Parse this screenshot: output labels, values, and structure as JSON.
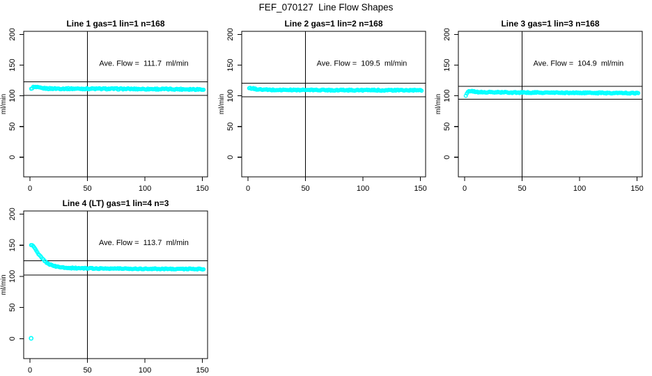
{
  "page": {
    "title": "FEF_070127  Line Flow Shapes"
  },
  "colors": {
    "marker": "#00FFFF",
    "axis": "#000000",
    "background": "#FFFFFF"
  },
  "chart_data": [
    {
      "type": "scatter",
      "title": "Line 1 gas=1 lin=1 n=168",
      "annotation": "Ave. Flow =  111.7  ml/min",
      "ave_flow_ml_min": 111.7,
      "n": 168,
      "gas": 1,
      "lin": 1,
      "ylabel": "ml/min",
      "xlabel": "",
      "x_ticks": [
        0,
        50,
        100,
        150
      ],
      "y_ticks": [
        0,
        50,
        100,
        150,
        200
      ],
      "xlim": [
        -5.5,
        154.5
      ],
      "ylim": [
        -32,
        205
      ],
      "grid": false,
      "vline_x": 50,
      "hlines": [
        122.9,
        100.5
      ],
      "n_points": 168,
      "noise": 1.0,
      "series_profile": [
        [
          1,
          110.8
        ],
        [
          2.5,
          114.2
        ],
        [
          6,
          113.8
        ],
        [
          10,
          112.4
        ],
        [
          16,
          111.8
        ],
        [
          60,
          111.4
        ],
        [
          151,
          110.6
        ]
      ],
      "extra_points": [],
      "annotation_pos": [
        99,
        149
      ]
    },
    {
      "type": "scatter",
      "title": "Line 2 gas=1 lin=2 n=168",
      "annotation": "Ave. Flow =  109.5  ml/min",
      "ave_flow_ml_min": 109.5,
      "n": 168,
      "gas": 1,
      "lin": 2,
      "ylabel": "ml/min",
      "xlabel": "",
      "x_ticks": [
        0,
        50,
        100,
        150
      ],
      "y_ticks": [
        0,
        50,
        100,
        150,
        200
      ],
      "xlim": [
        -5.5,
        154.5
      ],
      "ylim": [
        -32,
        205
      ],
      "grid": false,
      "vline_x": 50,
      "hlines": [
        120.5,
        98.6
      ],
      "n_points": 168,
      "noise": 0.9,
      "series_profile": [
        [
          1,
          112.2
        ],
        [
          4,
          112.0
        ],
        [
          9,
          110.2
        ],
        [
          20,
          109.6
        ],
        [
          80,
          109.3
        ],
        [
          151,
          108.9
        ]
      ],
      "extra_points": [],
      "annotation_pos": [
        99,
        149
      ]
    },
    {
      "type": "scatter",
      "title": "Line 3 gas=1 lin=3 n=168",
      "annotation": "Ave. Flow =  104.9  ml/min",
      "ave_flow_ml_min": 104.9,
      "n": 168,
      "gas": 1,
      "lin": 3,
      "ylabel": "ml/min",
      "xlabel": "",
      "x_ticks": [
        0,
        50,
        100,
        150
      ],
      "y_ticks": [
        0,
        50,
        100,
        150,
        200
      ],
      "xlim": [
        -5.5,
        154.5
      ],
      "ylim": [
        -32,
        205
      ],
      "grid": false,
      "vline_x": 50,
      "hlines": [
        115.4,
        94.4
      ],
      "n_points": 168,
      "noise": 0.9,
      "series_profile": [
        [
          1,
          100.2
        ],
        [
          2.5,
          106.8
        ],
        [
          6,
          107.4
        ],
        [
          12,
          105.9
        ],
        [
          60,
          105.2
        ],
        [
          151,
          104.4
        ]
      ],
      "extra_points": [],
      "annotation_pos": [
        99,
        149
      ]
    },
    {
      "type": "scatter",
      "title": "Line 4 (LT) gas=1 lin=4 n=3",
      "annotation": "Ave. Flow =  113.7  ml/min",
      "ave_flow_ml_min": 113.7,
      "n": 3,
      "gas": 1,
      "lin": 4,
      "ylabel": "ml/min",
      "xlabel": "",
      "x_ticks": [
        0,
        50,
        100,
        150
      ],
      "y_ticks": [
        0,
        50,
        100,
        150,
        200
      ],
      "xlim": [
        -5.5,
        154.5
      ],
      "ylim": [
        -32,
        205
      ],
      "grid": false,
      "vline_x": 50,
      "hlines": [
        125.1,
        102.3
      ],
      "n_points": 168,
      "noise": 0.8,
      "series_profile": [
        [
          1,
          151.0
        ],
        [
          3,
          148.0
        ],
        [
          5,
          143.0
        ],
        [
          7,
          137.0
        ],
        [
          9,
          132.0
        ],
        [
          12,
          126.0
        ],
        [
          15,
          121.5
        ],
        [
          18,
          118.5
        ],
        [
          22,
          116.0
        ],
        [
          27,
          114.5
        ],
        [
          35,
          113.5
        ],
        [
          50,
          112.8
        ],
        [
          100,
          112.2
        ],
        [
          151,
          111.8
        ]
      ],
      "extra_points": [
        [
          1,
          0.5
        ]
      ],
      "annotation_pos": [
        99,
        150
      ]
    }
  ]
}
